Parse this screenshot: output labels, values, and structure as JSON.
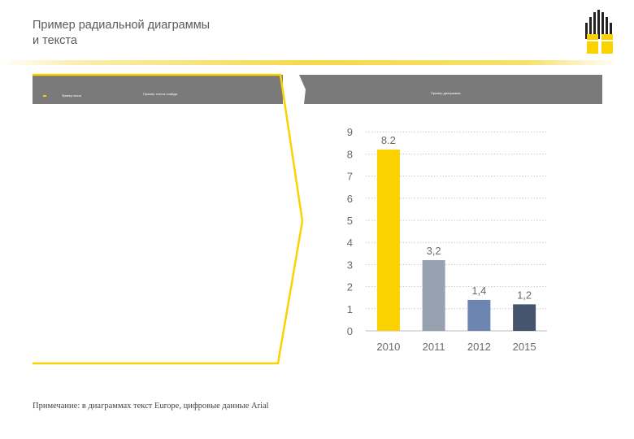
{
  "slide": {
    "title": "Пример радиальной диаграммы\nи текста",
    "left_panel_label": "Пример текста слайда",
    "left_panel_sub": "Пример текста",
    "right_panel_label": "Пример диаграммы",
    "note": "Примечание: в диаграммах текст Europe, цифровые данные Arial"
  },
  "colors": {
    "brand_yellow": "#fcd100",
    "panel_gray": "#7a7a7a"
  },
  "chart_data": {
    "type": "bar",
    "categories": [
      "2010",
      "2011",
      "2012",
      "2015"
    ],
    "values": [
      8.2,
      3.2,
      1.4,
      1.2
    ],
    "value_labels": [
      "8.2",
      "3,2",
      "1,4",
      "1,2"
    ],
    "bar_colors": [
      "#fcd100",
      "#98a1b0",
      "#6d86b1",
      "#45556e"
    ],
    "yticks": [
      "0",
      "1",
      "2",
      "3",
      "4",
      "5",
      "6",
      "7",
      "8",
      "9"
    ],
    "ylim": [
      0,
      9
    ],
    "grid": true,
    "title": "",
    "xlabel": "",
    "ylabel": ""
  }
}
